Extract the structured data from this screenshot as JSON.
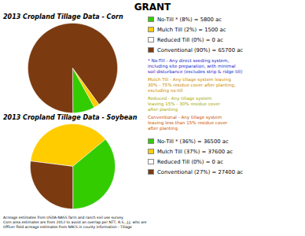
{
  "title": "GRANT",
  "chart_data": [
    {
      "type": "pie",
      "title": "2013 Cropland Tillage Data - Corn",
      "categories": [
        "No-Till * (8%) = 5800 ac",
        "Mulch Till (2%) = 1500 ac",
        "Reduced Till (0%) = 0 ac",
        "Conventional (90%) = 65700 ac"
      ],
      "values": [
        8,
        2,
        0.001,
        90
      ],
      "colors": [
        "#33cc00",
        "#ffcc00",
        "#ffffff",
        "#7B3A10"
      ],
      "legend": "right"
    },
    {
      "type": "pie",
      "title": "2013 Cropland Tillage Data - Soybean",
      "categories": [
        "No-Till * (36%) = 36500 ac",
        "Mulch Till (37%) = 37600 ac",
        "Reduced Till (0%) = 0 ac",
        "Conventional (27%) = 27400 ac"
      ],
      "values": [
        36,
        37,
        0.001,
        27
      ],
      "colors": [
        "#33cc00",
        "#ffcc00",
        "#ffffff",
        "#7B3A10"
      ],
      "legend": "right"
    }
  ],
  "annotations": [
    {
      "text": "* No-Till - Any direct seeding system,\nincluding site preparation, with minimal\nsoil disturbance (excludes strip & ridge till)",
      "color": "#2222cc"
    },
    {
      "text": "Mulch Till - Any tillage system leaving\n30% - 75% residue cover after planting,\nexcluding no-till",
      "color": "#cc8800"
    },
    {
      "text": "Reduced - Any tillage system\nleaving 15% - 30% residue cover\nafter planting",
      "color": "#aaaa00"
    },
    {
      "text": "Conventional - Any tillage system\nleaving less than 15% residue cover\nafter planting",
      "color": "#cc5500"
    }
  ],
  "caption": "Acreage estimates from USDA-NASS farm and ranch soil use survey.\nCorn area estimates are from 2012 to avoid an overlap per NTT, R.S., J.J. who are\nOfficer field acreage estimates from NRCS in county information - Tillage"
}
